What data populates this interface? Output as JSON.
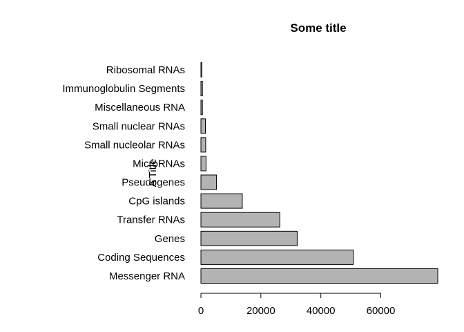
{
  "chart_data": {
    "type": "bar",
    "orientation": "horizontal",
    "title": "Some title",
    "ylabel": "A Title",
    "xlabel": "",
    "categories": [
      "Messenger RNA",
      "Coding Sequences",
      "Genes",
      "Transfer RNAs",
      "CpG islands",
      "Pseudogenes",
      "MicroRNAs",
      "Small nucleolar RNAs",
      "Small nuclear RNAs",
      "Miscellaneous RNA",
      "Immunoglobulin Segments",
      "Ribosomal RNAs"
    ],
    "values": [
      79000,
      50800,
      32100,
      26300,
      13800,
      5200,
      1700,
      1600,
      1500,
      500,
      500,
      300
    ],
    "x_ticks": [
      0,
      20000,
      40000,
      60000
    ],
    "x_tick_labels": [
      "0",
      "20000",
      "40000",
      "60000"
    ],
    "xlim": [
      0,
      79000
    ],
    "bar_color": "#b3b3b3",
    "grid": false
  }
}
